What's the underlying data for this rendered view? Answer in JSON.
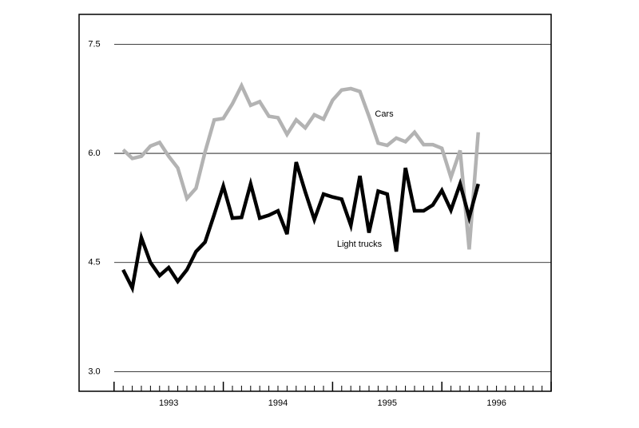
{
  "chart_data": {
    "type": "line",
    "x": [
      1993.083,
      1993.167,
      1993.25,
      1993.333,
      1993.417,
      1993.5,
      1993.583,
      1993.667,
      1993.75,
      1993.833,
      1993.917,
      1994,
      1994.083,
      1994.167,
      1994.25,
      1994.333,
      1994.417,
      1994.5,
      1994.583,
      1994.667,
      1994.75,
      1994.833,
      1994.917,
      1995,
      1995.083,
      1995.167,
      1995.25,
      1995.333,
      1995.417,
      1995.5,
      1995.583,
      1995.667,
      1995.75,
      1995.833,
      1995.917,
      1996,
      1996.083,
      1996.167,
      1996.25,
      1996.333
    ],
    "series": [
      {
        "name": "Cars",
        "color": "#b3b3b3",
        "values": [
          6.05,
          5.93,
          5.96,
          6.1,
          6.15,
          5.96,
          5.8,
          5.38,
          5.52,
          6.02,
          6.46,
          6.48,
          6.68,
          6.93,
          6.66,
          6.71,
          6.51,
          6.49,
          6.26,
          6.46,
          6.35,
          6.53,
          6.47,
          6.73,
          6.87,
          6.89,
          6.85,
          6.51,
          6.14,
          6.11,
          6.21,
          6.16,
          6.29,
          6.12,
          6.12,
          6.07,
          5.67,
          6.04,
          4.68,
          6.29
        ]
      },
      {
        "name": "Light trucks",
        "color": "#000000",
        "values": [
          4.4,
          4.15,
          4.84,
          4.5,
          4.32,
          4.43,
          4.24,
          4.4,
          4.65,
          4.78,
          5.16,
          5.55,
          5.11,
          5.12,
          5.58,
          5.11,
          5.15,
          5.21,
          4.89,
          5.88,
          5.47,
          5.09,
          5.44,
          5.4,
          5.37,
          5.01,
          5.69,
          4.91,
          5.48,
          5.44,
          4.65,
          5.8,
          5.21,
          5.21,
          5.29,
          5.49,
          5.22,
          5.58,
          5.12,
          5.58
        ]
      }
    ],
    "xlim": [
      1992.68,
      1997.0
    ],
    "xticks": [
      {
        "value": 1993.5,
        "label": "1993"
      },
      {
        "value": 1994.5,
        "label": "1994"
      },
      {
        "value": 1995.5,
        "label": "1995"
      },
      {
        "value": 1996.5,
        "label": "1996"
      }
    ],
    "ylim": [
      2.73,
      7.91
    ],
    "yticks": [
      {
        "value": 3.0,
        "label": "3.0"
      },
      {
        "value": 4.5,
        "label": "4.5"
      },
      {
        "value": 6.0,
        "label": "6.0"
      },
      {
        "value": 7.5,
        "label": "7.5"
      }
    ],
    "grid": true
  }
}
